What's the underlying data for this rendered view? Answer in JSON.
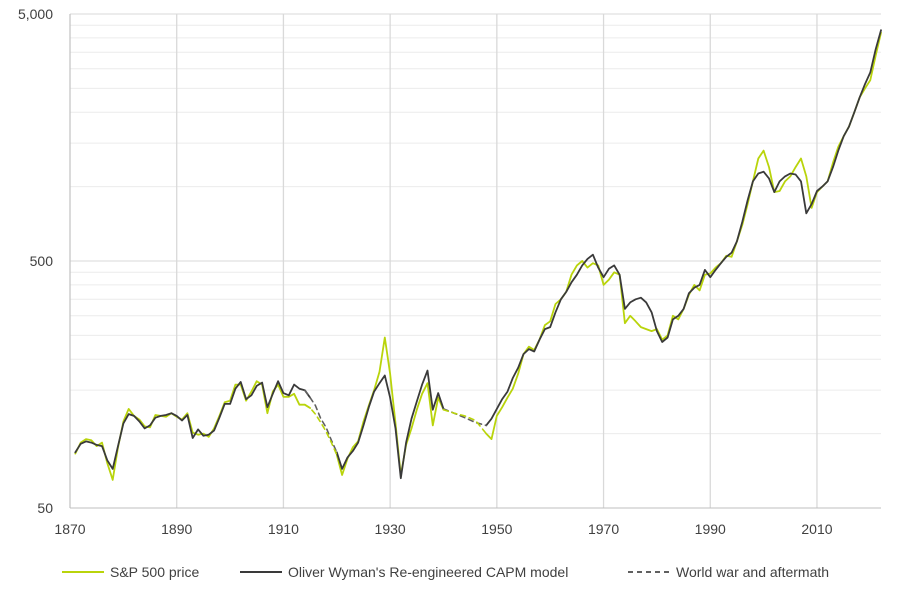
{
  "chart_data": {
    "type": "line",
    "title": "",
    "xlabel": "",
    "ylabel": "",
    "y_scale": "log",
    "xlim": [
      1870,
      2022
    ],
    "ylim": [
      50,
      5000
    ],
    "x_ticks": [
      1870,
      1890,
      1910,
      1930,
      1950,
      1970,
      1990,
      2010
    ],
    "x_tick_labels": [
      "1870",
      "1890",
      "1910",
      "1930",
      "1950",
      "1970",
      "1990",
      "2010"
    ],
    "y_ticks": [
      50,
      500,
      5000
    ],
    "y_tick_labels": [
      "50",
      "500",
      "5,000"
    ],
    "grid": "vertical lines at x ticks; horizontal minor gridlines at log steps",
    "legend_position": "bottom",
    "colors": {
      "sp500": "#b9d40b",
      "model": "#3a3a3a",
      "war": "#606060",
      "grid": "#d9d9d9"
    },
    "series": [
      {
        "name": "S&P 500 price",
        "style": "solid",
        "color": "#b9d40b",
        "x": [
          1871,
          1872,
          1873,
          1874,
          1875,
          1876,
          1877,
          1878,
          1879,
          1880,
          1881,
          1882,
          1883,
          1884,
          1885,
          1886,
          1887,
          1888,
          1889,
          1890,
          1891,
          1892,
          1893,
          1894,
          1895,
          1896,
          1897,
          1898,
          1899,
          1900,
          1901,
          1902,
          1903,
          1904,
          1905,
          1906,
          1907,
          1908,
          1909,
          1910,
          1911,
          1912,
          1913,
          1914,
          1915
        ],
        "y": [
          83,
          92,
          95,
          94,
          89,
          92,
          76,
          65,
          88,
          112,
          126,
          118,
          114,
          107,
          106,
          119,
          118,
          117,
          121,
          117,
          114,
          121,
          101,
          99,
          100,
          97,
          105,
          118,
          134,
          136,
          158,
          158,
          136,
          148,
          163,
          158,
          121,
          148,
          158,
          141,
          141,
          145,
          131,
          131,
          127
        ]
      },
      {
        "name": "S&P 500 price",
        "style": "solid",
        "color": "#b9d40b",
        "x": [
          1920,
          1921,
          1922,
          1923,
          1924,
          1925,
          1926,
          1927,
          1928,
          1929,
          1930,
          1931,
          1932,
          1933,
          1934,
          1935,
          1936,
          1937,
          1938,
          1939,
          1940
        ],
        "y": [
          82,
          68,
          79,
          88,
          93,
          112,
          130,
          150,
          178,
          245,
          175,
          110,
          68,
          90,
          105,
          125,
          145,
          160,
          108,
          140,
          125
        ]
      },
      {
        "name": "S&P 500 price",
        "style": "solid",
        "color": "#b9d40b",
        "x": [
          1948,
          1949,
          1950,
          1951,
          1952,
          1953,
          1954,
          1955,
          1956,
          1957,
          1958,
          1959,
          1960,
          1961,
          1962,
          1963,
          1964,
          1965,
          1966,
          1967,
          1968,
          1969,
          1970,
          1971,
          1972,
          1973,
          1974,
          1975,
          1976,
          1977,
          1978,
          1979,
          1980,
          1981,
          1982,
          1983,
          1984,
          1985,
          1986,
          1987,
          1988,
          1989,
          1990,
          1991,
          1992,
          1993,
          1994,
          1995,
          1996,
          1997,
          1998,
          1999,
          2000,
          2001,
          2002,
          2003,
          2004,
          2005,
          2006,
          2007,
          2008,
          2009,
          2010,
          2011,
          2012,
          2013,
          2014,
          2015,
          2016,
          2017,
          2018,
          2019,
          2020,
          2021,
          2022
        ],
        "y": [
          100,
          95,
          118,
          128,
          140,
          152,
          175,
          210,
          225,
          218,
          240,
          275,
          285,
          335,
          350,
          375,
          440,
          480,
          500,
          470,
          490,
          480,
          400,
          420,
          450,
          440,
          280,
          300,
          285,
          270,
          265,
          260,
          265,
          240,
          250,
          300,
          290,
          320,
          365,
          400,
          380,
          440,
          445,
          470,
          490,
          525,
          520,
          600,
          700,
          850,
          1050,
          1300,
          1400,
          1200,
          950,
          960,
          1050,
          1100,
          1200,
          1300,
          1100,
          820,
          950,
          1000,
          1050,
          1250,
          1450,
          1600,
          1750,
          2000,
          2300,
          2500,
          2700,
          3400,
          4200
        ]
      },
      {
        "name": "Oliver Wyman's Re-engineered CAPM model",
        "style": "solid",
        "color": "#3a3a3a",
        "x": [
          1871,
          1872,
          1873,
          1874,
          1875,
          1876,
          1877,
          1878,
          1879,
          1880,
          1881,
          1882,
          1883,
          1884,
          1885,
          1886,
          1887,
          1888,
          1889,
          1890,
          1891,
          1892,
          1893,
          1894,
          1895,
          1896,
          1897,
          1898,
          1899,
          1900,
          1901,
          1902,
          1903,
          1904,
          1905,
          1906,
          1907,
          1908,
          1909,
          1910,
          1911,
          1912,
          1913,
          1914,
          1915
        ],
        "y": [
          84,
          91,
          93,
          92,
          90,
          89,
          78,
          72,
          89,
          110,
          120,
          118,
          112,
          105,
          108,
          116,
          118,
          119,
          121,
          118,
          113,
          119,
          96,
          104,
          98,
          99,
          103,
          116,
          132,
          132,
          152,
          162,
          138,
          143,
          156,
          161,
          128,
          145,
          163,
          146,
          143,
          158,
          152,
          150,
          140
        ]
      },
      {
        "name": "Oliver Wyman's Re-engineered CAPM model",
        "style": "solid",
        "color": "#3a3a3a",
        "x": [
          1920,
          1921,
          1922,
          1923,
          1924,
          1925,
          1926,
          1927,
          1928,
          1929,
          1930,
          1931,
          1932,
          1933,
          1934,
          1935,
          1936,
          1937,
          1938,
          1939,
          1940
        ],
        "y": [
          84,
          72,
          80,
          85,
          92,
          108,
          128,
          148,
          160,
          172,
          140,
          105,
          66,
          92,
          115,
          135,
          158,
          180,
          125,
          146,
          126
        ]
      },
      {
        "name": "Oliver Wyman's Re-engineered CAPM model",
        "style": "solid",
        "color": "#3a3a3a",
        "x": [
          1948,
          1949,
          1950,
          1951,
          1952,
          1953,
          1954,
          1955,
          1956,
          1957,
          1958,
          1959,
          1960,
          1961,
          1962,
          1963,
          1964,
          1965,
          1966,
          1967,
          1968,
          1969,
          1970,
          1971,
          1972,
          1973,
          1974,
          1975,
          1976,
          1977,
          1978,
          1979,
          1980,
          1981,
          1982,
          1983,
          1984,
          1985,
          1986,
          1987,
          1988,
          1989,
          1990,
          1991,
          1992,
          1993,
          1994,
          1995,
          1996,
          1997,
          1998,
          1999,
          2000,
          2001,
          2002,
          2003,
          2004,
          2005,
          2006,
          2007,
          2008,
          2009,
          2010,
          2011,
          2012,
          2013,
          2014,
          2015,
          2016,
          2017,
          2018,
          2019,
          2020,
          2021,
          2022
        ],
        "y": [
          108,
          115,
          126,
          138,
          148,
          168,
          185,
          210,
          220,
          215,
          240,
          265,
          270,
          310,
          350,
          375,
          410,
          440,
          480,
          510,
          530,
          470,
          430,
          465,
          480,
          440,
          320,
          340,
          350,
          355,
          340,
          310,
          260,
          235,
          245,
          290,
          300,
          320,
          370,
          390,
          400,
          460,
          430,
          460,
          490,
          520,
          540,
          600,
          720,
          880,
          1050,
          1130,
          1150,
          1080,
          950,
          1050,
          1100,
          1130,
          1120,
          1050,
          780,
          850,
          960,
          1000,
          1050,
          1200,
          1400,
          1600,
          1750,
          2000,
          2300,
          2600,
          2900,
          3600,
          4300
        ]
      },
      {
        "name": "World war and aftermath",
        "style": "dashed",
        "color": "#606060",
        "x": [
          1914,
          1915,
          1916,
          1917,
          1918,
          1919,
          1920
        ],
        "y": [
          150,
          140,
          130,
          115,
          106,
          94,
          84
        ]
      },
      {
        "name": "World war and aftermath",
        "style": "dashed",
        "color": "#b9d40b",
        "x": [
          1914,
          1915,
          1916,
          1917,
          1918,
          1919,
          1920
        ],
        "y": [
          131,
          127,
          120,
          111,
          102,
          92,
          82
        ]
      },
      {
        "name": "World war and aftermath",
        "style": "dashed",
        "color": "#606060",
        "x": [
          1940,
          1942,
          1944,
          1946,
          1948
        ],
        "y": [
          126,
          121,
          116,
          111,
          108
        ]
      },
      {
        "name": "World war and aftermath",
        "style": "dashed",
        "color": "#b9d40b",
        "x": [
          1940,
          1942,
          1944,
          1946,
          1948
        ],
        "y": [
          125,
          121,
          118,
          113,
          100
        ]
      }
    ],
    "legend": [
      {
        "label": "S&P 500 price",
        "style": "solid",
        "color": "#b9d40b"
      },
      {
        "label": "Oliver Wyman's Re-engineered CAPM model",
        "style": "solid",
        "color": "#3a3a3a"
      },
      {
        "label": "World war and aftermath",
        "style": "dashed",
        "color": "#606060"
      }
    ]
  }
}
